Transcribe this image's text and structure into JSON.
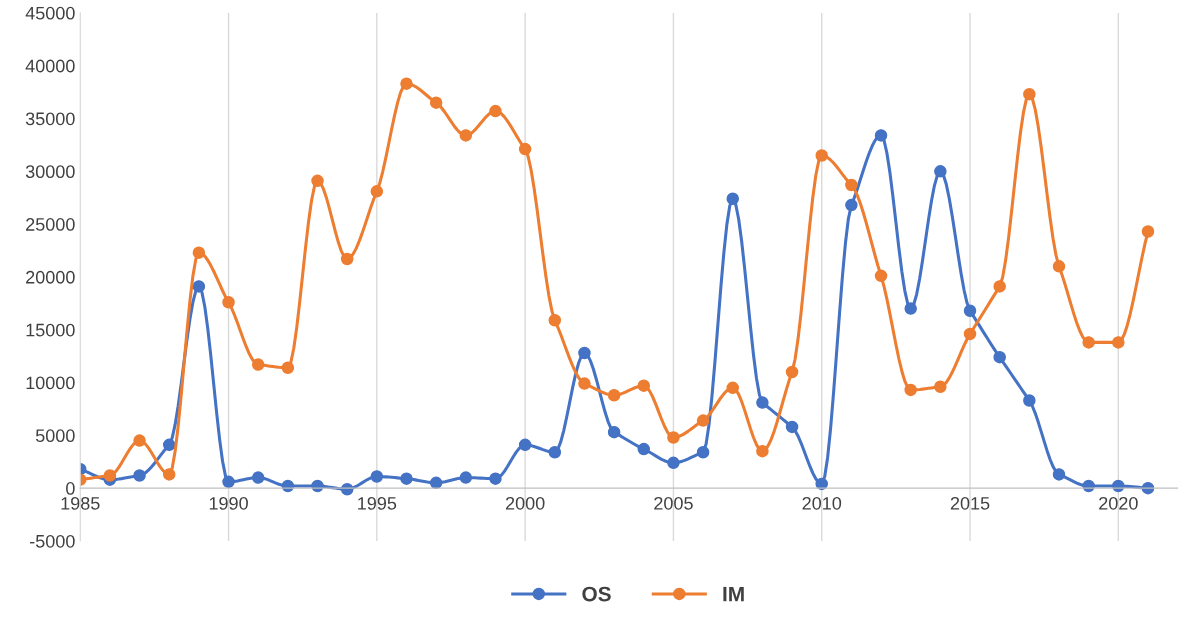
{
  "chart_data": {
    "type": "line",
    "x": [
      1985,
      1986,
      1987,
      1988,
      1989,
      1990,
      1991,
      1992,
      1993,
      1994,
      1995,
      1996,
      1997,
      1998,
      1999,
      2000,
      2001,
      2002,
      2003,
      2004,
      2005,
      2006,
      2007,
      2008,
      2009,
      2010,
      2011,
      2012,
      2013,
      2014,
      2015,
      2016,
      2017,
      2018,
      2019,
      2020,
      2021
    ],
    "series": [
      {
        "name": "OS",
        "color": "#4472c4",
        "values": [
          1800,
          800,
          1200,
          4100,
          19100,
          600,
          1000,
          200,
          200,
          -100,
          1100,
          900,
          500,
          1000,
          900,
          4100,
          3400,
          12800,
          5300,
          3700,
          2400,
          3400,
          27400,
          8100,
          5800,
          400,
          26800,
          33400,
          17000,
          30000,
          16800,
          12400,
          8300,
          1300,
          200,
          200,
          0
        ]
      },
      {
        "name": "IM",
        "color": "#ed7d31",
        "values": [
          800,
          1200,
          4500,
          1300,
          22300,
          17600,
          11700,
          11400,
          29100,
          21700,
          28100,
          38300,
          36500,
          33400,
          35700,
          32100,
          15900,
          9900,
          8800,
          9700,
          4800,
          6400,
          9500,
          3500,
          11000,
          31500,
          28700,
          20100,
          9300,
          9600,
          14600,
          19100,
          37300,
          21000,
          13800,
          13800,
          24300
        ]
      }
    ],
    "xlim": [
      1985,
      2022
    ],
    "xticks": [
      1985,
      1990,
      1995,
      2000,
      2005,
      2010,
      2015,
      2020
    ],
    "ylim": [
      -5000,
      45000
    ],
    "yticks": [
      -5000,
      0,
      5000,
      10000,
      15000,
      20000,
      25000,
      30000,
      35000,
      40000,
      45000
    ],
    "grid": "x",
    "legend": "bottom",
    "marker": "circle",
    "line_style": "solid"
  }
}
